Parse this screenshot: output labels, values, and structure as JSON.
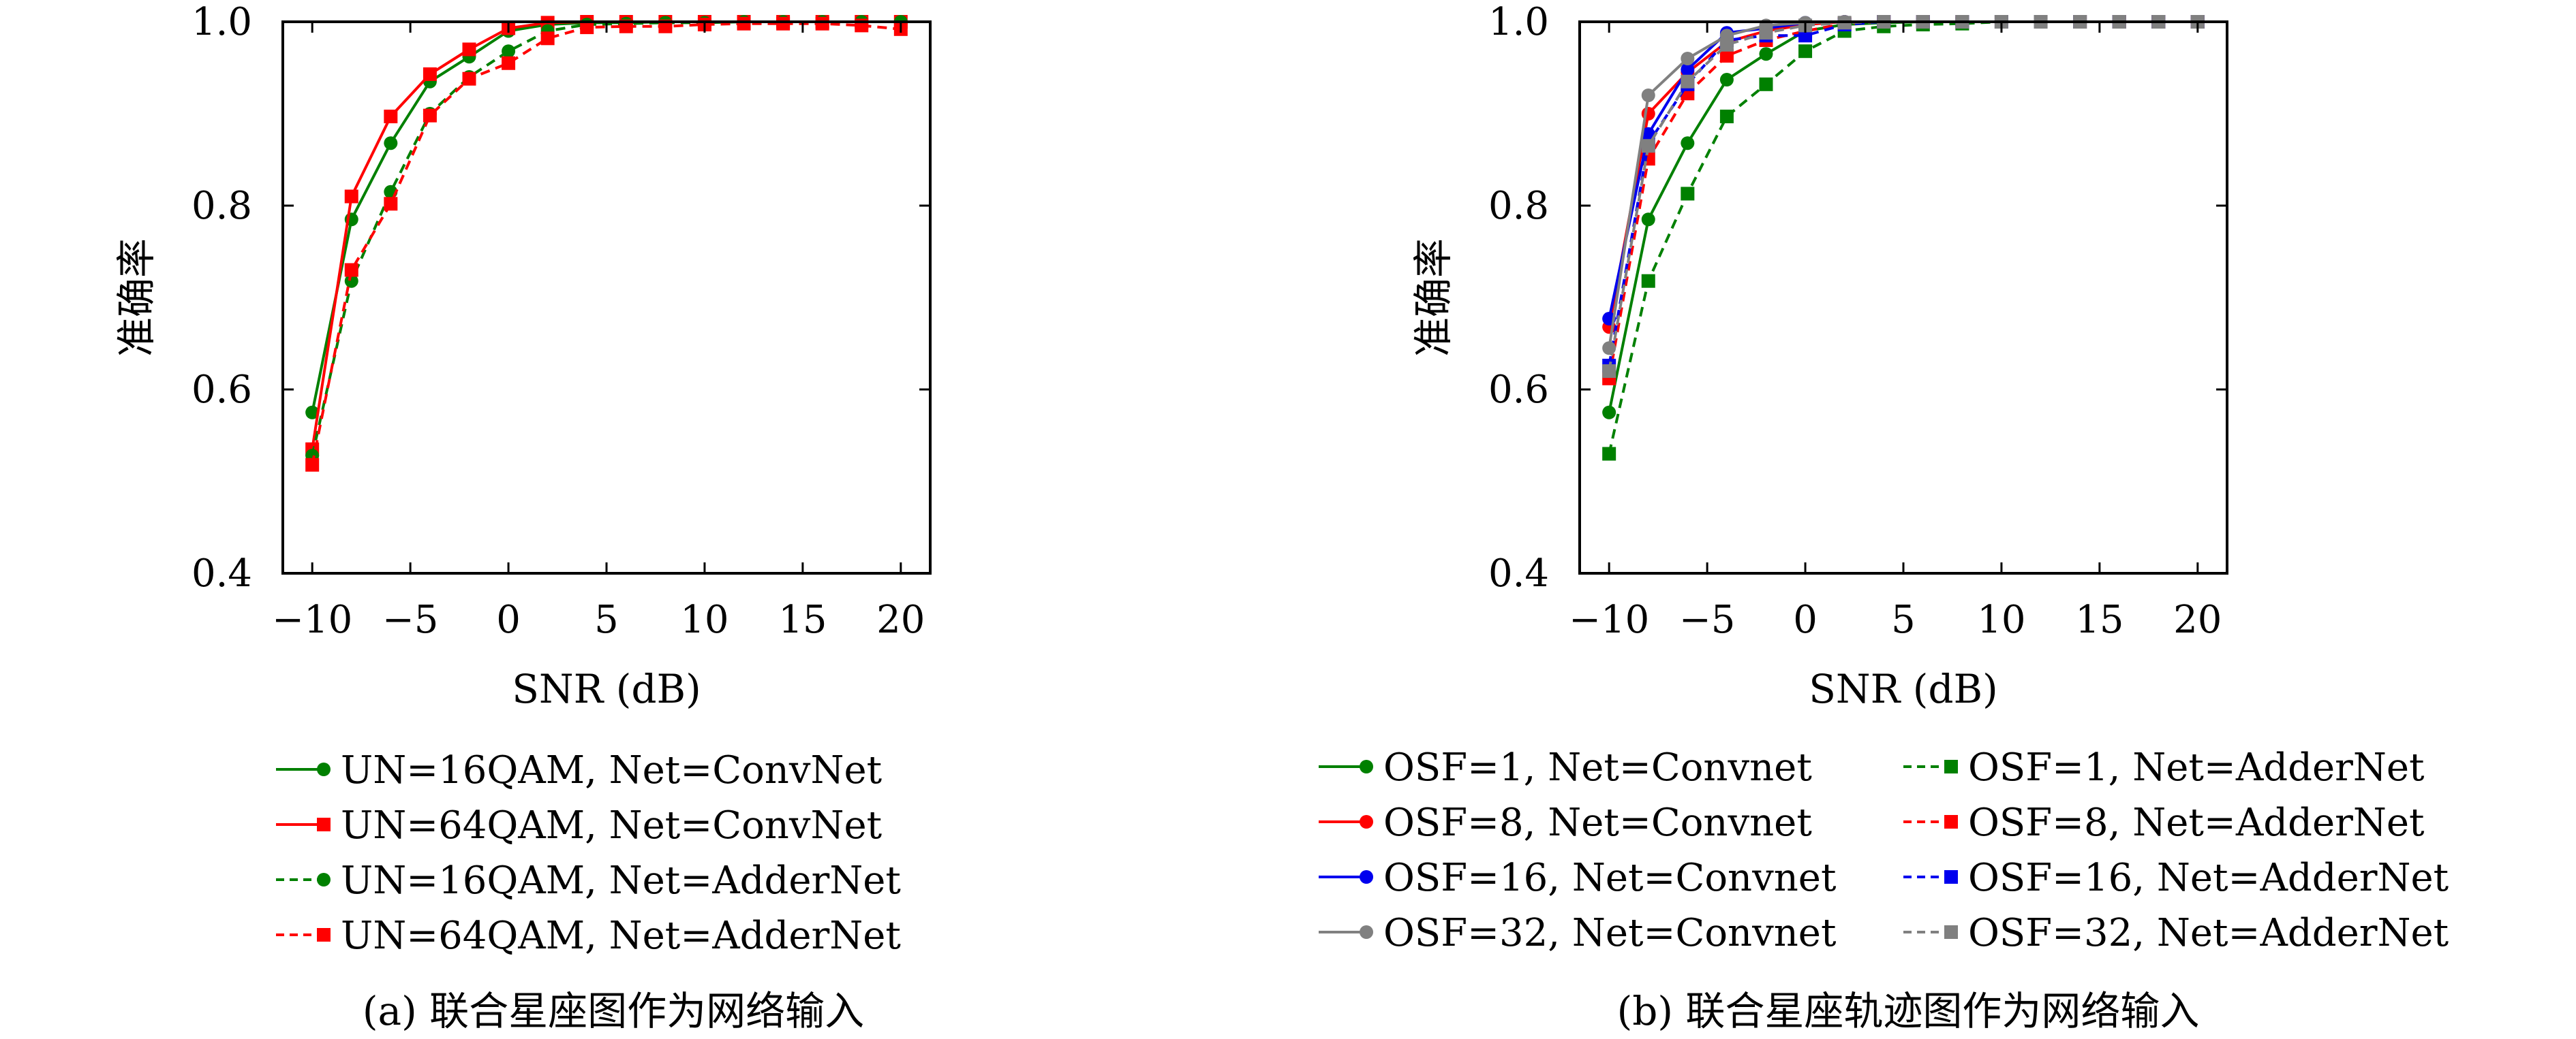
{
  "chart_data": [
    {
      "type": "line",
      "caption": "(a) 联合星座图作为网络输入",
      "xlabel": "SNR (dB)",
      "ylabel": "准确率",
      "xlim": [
        -11.5,
        21.5
      ],
      "ylim": [
        0.4,
        1.0
      ],
      "xticks": [
        -10,
        -5,
        0,
        5,
        10,
        15,
        20
      ],
      "xtick_labels": [
        "−10",
        "−5",
        "0",
        "5",
        "10",
        "15",
        "20"
      ],
      "yticks": [
        0.4,
        0.6,
        0.8,
        1.0
      ],
      "ytick_labels": [
        "0.4",
        "0.6",
        "0.8",
        "1.0"
      ],
      "grid": false,
      "legend_position": "below",
      "x": [
        -10,
        -8,
        -6,
        -4,
        -2,
        0,
        2,
        4,
        6,
        8,
        10,
        12,
        14,
        16,
        18,
        20
      ],
      "series": [
        {
          "name": "UN=16QAM, Net=ConvNet",
          "color": "#008000",
          "dash": "solid",
          "marker": "circle",
          "values": [
            0.575,
            0.785,
            0.868,
            0.935,
            0.962,
            0.99,
            0.997,
            0.999,
            0.999,
            1.0,
            1.0,
            1.0,
            1.0,
            1.0,
            1.0,
            1.0
          ]
        },
        {
          "name": "UN=64QAM, Net=ConvNet",
          "color": "#ff0000",
          "dash": "solid",
          "marker": "square",
          "values": [
            0.535,
            0.81,
            0.897,
            0.943,
            0.97,
            0.993,
            0.999,
            1.0,
            1.0,
            1.0,
            1.0,
            1.0,
            1.0,
            1.0,
            1.0,
            1.0
          ]
        },
        {
          "name": "UN=16QAM, Net=AdderNet",
          "color": "#008000",
          "dash": "dashed",
          "marker": "circle",
          "values": [
            0.528,
            0.718,
            0.815,
            0.9,
            0.94,
            0.968,
            0.99,
            0.997,
            0.998,
            0.999,
            0.999,
            1.0,
            1.0,
            1.0,
            1.0,
            1.0
          ]
        },
        {
          "name": "UN=64QAM, Net=AdderNet",
          "color": "#ff0000",
          "dash": "dashed",
          "marker": "square",
          "values": [
            0.518,
            0.73,
            0.802,
            0.898,
            0.938,
            0.955,
            0.982,
            0.994,
            0.995,
            0.995,
            0.997,
            0.998,
            0.998,
            0.998,
            0.996,
            0.992
          ]
        }
      ]
    },
    {
      "type": "line",
      "caption": "(b) 联合星座轨迹图作为网络输入",
      "xlabel": "SNR (dB)",
      "ylabel": "准确率",
      "xlim": [
        -11.5,
        21.5
      ],
      "ylim": [
        0.4,
        1.0
      ],
      "xticks": [
        -10,
        -5,
        0,
        5,
        10,
        15,
        20
      ],
      "xtick_labels": [
        "−10",
        "−5",
        "0",
        "5",
        "10",
        "15",
        "20"
      ],
      "yticks": [
        0.4,
        0.6,
        0.8,
        1.0
      ],
      "ytick_labels": [
        "0.4",
        "0.6",
        "0.8",
        "1.0"
      ],
      "grid": false,
      "legend_position": "below",
      "x": [
        -10,
        -8,
        -6,
        -4,
        -2,
        0,
        2,
        4,
        6,
        8,
        10,
        12,
        14,
        16,
        18,
        20
      ],
      "series": [
        {
          "name": "OSF=1, Net=Convnet",
          "color": "#008000",
          "dash": "solid",
          "marker": "circle",
          "values": [
            0.575,
            0.785,
            0.868,
            0.937,
            0.965,
            0.99,
            0.997,
            0.999,
            1.0,
            1.0,
            1.0,
            1.0,
            1.0,
            1.0,
            1.0,
            1.0
          ]
        },
        {
          "name": "OSF=1, Net=AdderNet",
          "color": "#008000",
          "dash": "dashed",
          "marker": "square",
          "values": [
            0.53,
            0.718,
            0.813,
            0.897,
            0.932,
            0.968,
            0.99,
            0.995,
            0.997,
            0.998,
            1.0,
            1.0,
            1.0,
            1.0,
            1.0,
            1.0
          ]
        },
        {
          "name": "OSF=8, Net=Convnet",
          "color": "#ff0000",
          "dash": "solid",
          "marker": "circle",
          "values": [
            0.668,
            0.9,
            0.945,
            0.978,
            0.99,
            0.997,
            1.0,
            1.0,
            1.0,
            1.0,
            1.0,
            1.0,
            1.0,
            1.0,
            1.0,
            1.0
          ]
        },
        {
          "name": "OSF=8, Net=AdderNet",
          "color": "#ff0000",
          "dash": "dashed",
          "marker": "square",
          "values": [
            0.612,
            0.851,
            0.922,
            0.963,
            0.98,
            0.99,
            0.998,
            1.0,
            1.0,
            1.0,
            1.0,
            1.0,
            1.0,
            1.0,
            1.0,
            1.0
          ]
        },
        {
          "name": "OSF=16, Net=Convnet",
          "color": "#0000ee",
          "dash": "solid",
          "marker": "circle",
          "values": [
            0.677,
            0.878,
            0.948,
            0.988,
            0.993,
            0.999,
            1.0,
            1.0,
            1.0,
            1.0,
            1.0,
            1.0,
            1.0,
            1.0,
            1.0,
            1.0
          ]
        },
        {
          "name": "OSF=16, Net=AdderNet",
          "color": "#0000ee",
          "dash": "dashed",
          "marker": "square",
          "values": [
            0.626,
            0.868,
            0.932,
            0.98,
            0.985,
            0.985,
            0.997,
            1.0,
            1.0,
            1.0,
            1.0,
            1.0,
            1.0,
            1.0,
            1.0,
            1.0
          ]
        },
        {
          "name": "OSF=32, Net=Convnet",
          "color": "#808080",
          "dash": "solid",
          "marker": "circle",
          "values": [
            0.645,
            0.92,
            0.96,
            0.985,
            0.996,
            0.999,
            1.0,
            1.0,
            1.0,
            1.0,
            1.0,
            1.0,
            1.0,
            1.0,
            1.0,
            1.0
          ]
        },
        {
          "name": "OSF=32, Net=AdderNet",
          "color": "#808080",
          "dash": "dashed",
          "marker": "square",
          "values": [
            0.62,
            0.865,
            0.935,
            0.975,
            0.988,
            0.996,
            0.999,
            1.0,
            1.0,
            1.0,
            1.0,
            1.0,
            1.0,
            1.0,
            1.0,
            1.0
          ]
        }
      ]
    }
  ]
}
